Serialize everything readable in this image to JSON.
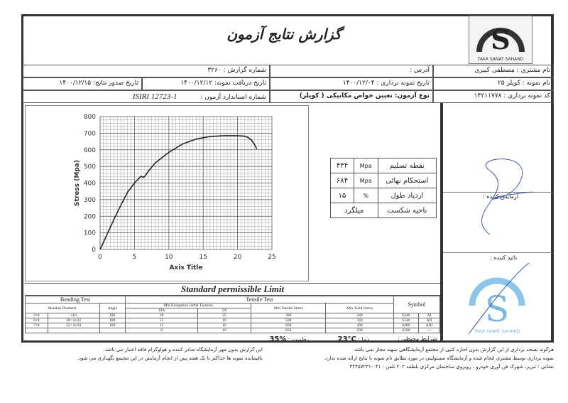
{
  "header": {
    "title": "گزارش نتایج آزمون",
    "logo_text": "TAKA SANAT SAHAND"
  },
  "info": {
    "customer": "نام مشتری : مصطفی کبیری",
    "address": "آدرس :",
    "report_no": "شماره گزارش : ۳۲۶۰",
    "sample_name": "نام نمونه : کوپلر ۲۵",
    "sampling_date": "تاریخ نمونه برداری : ۱۴۰۰/۱۲/۰۴",
    "receive_date": "تاریخ دریافت نمونه: ۱۴۰۰/۱۲/۱۲",
    "issue_date": "تاریخ صدور نتایج: ۱۴۰۰/۱۲/۱۵",
    "sample_code": "کد نمونه برداری : ۱۴۲۱۱۷۷۸",
    "test_type": "نوع آزمون: تعیین خواص مکانیکی ( کوپلر)",
    "standard_label": "شماره استاندارد آزمون :",
    "standard": "ISIRI 12723-1"
  },
  "chart_data": {
    "type": "line",
    "xlabel": "Axis Title",
    "ylabel": "Stress (Mpa)",
    "xlim": [
      0,
      25
    ],
    "ylim": [
      0,
      800
    ],
    "xticks": [
      0,
      5,
      10,
      15,
      20,
      25
    ],
    "yticks": [
      0,
      100,
      200,
      300,
      400,
      500,
      600,
      700,
      800
    ],
    "grid": true,
    "x": [
      0,
      1,
      2,
      3,
      4,
      5,
      5.8,
      6,
      6.3,
      6.5,
      7,
      8,
      10,
      12,
      14,
      16,
      18,
      20,
      21,
      21.5,
      22,
      22.5,
      22.8
    ],
    "y": [
      0,
      90,
      180,
      265,
      345,
      400,
      435,
      440,
      435,
      440,
      470,
      520,
      585,
      635,
      665,
      680,
      685,
      685,
      682,
      675,
      660,
      630,
      605
    ]
  },
  "results": [
    {
      "label": "نقطه تسلیم",
      "unit": "Mpa",
      "value": "۴۳۴"
    },
    {
      "label": "استحکام نهائی",
      "unit": "Mpa",
      "value": "۶۸۴"
    },
    {
      "label": "ازدیاد طول",
      "unit": "%",
      "value": "۱۵"
    }
  ],
  "fracture": {
    "label": "ناحیه شکست",
    "value": "میلگرد"
  },
  "signatures": {
    "tester": "آزمایش کننده :",
    "approver": "تائید کننده :"
  },
  "standard_limit": {
    "title": "Standard permissible Limit",
    "bending": "Bending Test",
    "tensile": "Tensile Test",
    "symbol": "Symbol",
    "cols": [
      "Mandrel Diameter",
      "Angle",
      "Min Elongation (After Facture)",
      "10A",
      "5A",
      "Min Tensile Stress",
      "Min Yield Stress"
    ],
    "rows": [
      [
        "3×d",
        "≤16",
        "180",
        "18",
        "25",
        "360",
        "240",
        "S240",
        "AI"
      ],
      [
        "6×d",
        "16< d≤32",
        "180",
        "15",
        "18",
        "500",
        "340",
        "S340",
        "AII"
      ],
      [
        "7×d",
        "32< d≤50",
        "180",
        "12",
        "16",
        "600",
        "400",
        "S400",
        "AIII"
      ],
      [
        "",
        "",
        "",
        "8",
        "10",
        "650",
        "500",
        "S500",
        "---"
      ]
    ]
  },
  "conditions": {
    "label": "شرایط محیطی :",
    "temp_label": "دما :",
    "temp": "23°C",
    "humidity_label": "رطوبت :",
    "humidity": "35%"
  },
  "footer": {
    "r1": "هرگونه نسخه برداری از این گزارش بدون اجازه کتبی از مجتمع آزمایشگاهی سهند مجاز نمی باشد.",
    "r2": "نمونه برداری توسط مشتری انجام شده و آزمایشگاه مسئولیتی در مورد تطابق نام نمونه با نتایج ارائه شده ندارد.",
    "r3": "نشانی : تبریز، شهرک فن آوری خودرو ، روبروی ساختمان مرکزی بلطقه ۲۰۲ تلفن : ۰۴۱-۳۴۴۵۷۲۳۱",
    "l1": "این گزارش بدون مهر آزمایشگاه صادر کننده و هولوگرام فاقد اعتبار می باشد.",
    "l2": "باقیمانده نمونه ها حداکثر تا یک هفته پس از انجام آزمایش در این مجتمع نگهداری می شود."
  }
}
